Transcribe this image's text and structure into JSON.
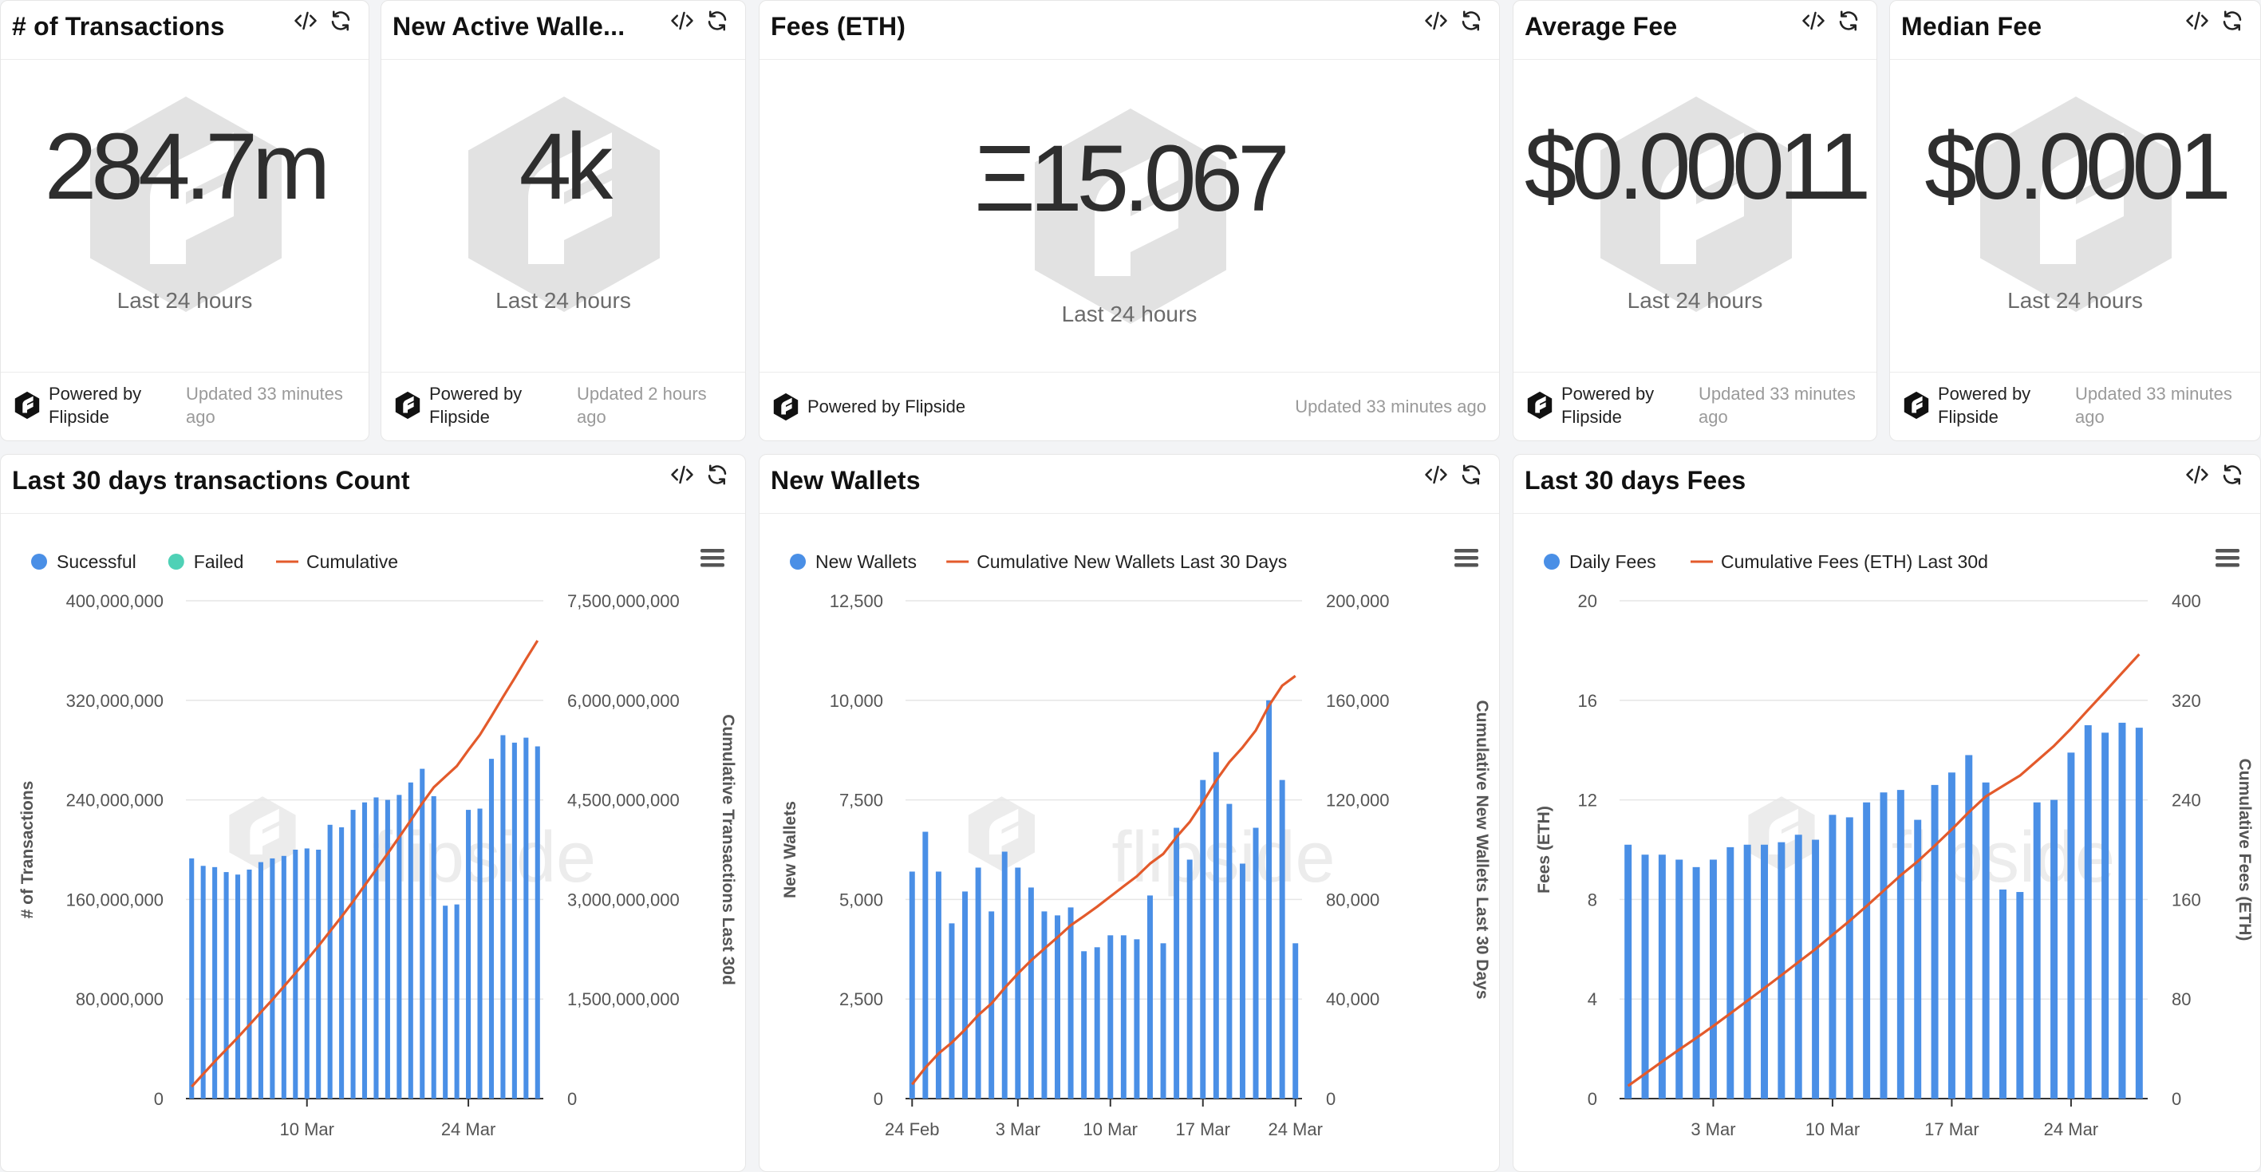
{
  "stat_cards": [
    {
      "title": "# of Transactions",
      "value": "284.7m",
      "subtitle": "Last 24 hours",
      "powered_1": "Powered by",
      "powered_2": "Flipside",
      "updated_1": "Updated 33 minutes",
      "updated_2": "ago"
    },
    {
      "title": "New Active Walle...",
      "value": "4k",
      "subtitle": "Last 24 hours",
      "powered_1": "Powered by",
      "powered_2": "Flipside",
      "updated_1": "Updated 2 hours",
      "updated_2": "ago"
    },
    {
      "title": "Fees (ETH)",
      "value": "Ξ15.067",
      "subtitle": "Last 24 hours",
      "powered_1": "Powered by Flipside",
      "updated_1": "Updated 33 minutes ago"
    },
    {
      "title": "Average Fee",
      "value": "$0.00011",
      "subtitle": "Last 24 hours",
      "powered_1": "Powered by",
      "powered_2": "Flipside",
      "updated_1": "Updated 33 minutes",
      "updated_2": "ago"
    },
    {
      "title": "Median Fee",
      "value": "$0.0001",
      "subtitle": "Last 24 hours",
      "powered_1": "Powered by",
      "powered_2": "Flipside",
      "updated_1": "Updated 33 minutes",
      "updated_2": "ago"
    }
  ],
  "colors": {
    "bar": "#4a8fe6",
    "line": "#e35a2b",
    "failed": "#4fd1b6",
    "text": "#555555",
    "grid": "#e6e6e6",
    "axis": "#333333"
  },
  "icons": {
    "embed": "code-embed-icon",
    "refresh": "refresh-icon",
    "menu": "hamburger-menu-icon",
    "brand": "flipside-logo-icon"
  },
  "watermark": "flipside",
  "chart_data": [
    {
      "type": "bar",
      "title": "Last 30 days transactions Count",
      "legend": [
        {
          "name": "Sucessful",
          "kind": "bar",
          "color": "#4a8fe6"
        },
        {
          "name": "Failed",
          "kind": "bar",
          "color": "#4fd1b6"
        },
        {
          "name": "Cumulative",
          "kind": "line",
          "color": "#e35a2b"
        }
      ],
      "ylabel": "# of Transactions",
      "y2label": "Cumulative Transactions Last 30d",
      "ylim": [
        0,
        400000000
      ],
      "y2lim": [
        0,
        7500000000
      ],
      "yticks": [
        "0",
        "80,000,000",
        "160,000,000",
        "240,000,000",
        "320,000,000",
        "400,000,000"
      ],
      "y2ticks": [
        "0",
        "1,500,000,000",
        "3,000,000,000",
        "4,500,000,000",
        "6,000,000,000",
        "7,500,000,000"
      ],
      "x_start_date": "2024-02-29",
      "xticks": [
        {
          "label": "10 Mar",
          "index": 10
        },
        {
          "label": "24 Mar",
          "index": 24
        }
      ],
      "values": [
        193000000,
        187000000,
        186000000,
        182000000,
        180000000,
        184000000,
        190000000,
        193000000,
        195000000,
        200000000,
        201000000,
        200000000,
        220000000,
        218000000,
        232000000,
        238000000,
        242000000,
        240000000,
        244000000,
        254000000,
        265000000,
        243000000,
        155000000,
        156000000,
        232000000,
        233000000,
        273000000,
        292000000,
        286000000,
        290000000,
        283000000
      ],
      "cumulative": [
        180000000,
        370000000,
        560000000,
        740000000,
        920000000,
        1110000000,
        1300000000,
        1490000000,
        1690000000,
        1890000000,
        2090000000,
        2300000000,
        2520000000,
        2740000000,
        2970000000,
        3210000000,
        3450000000,
        3690000000,
        3940000000,
        4190000000,
        4450000000,
        4690000000,
        4850000000,
        5010000000,
        5250000000,
        5480000000,
        5760000000,
        6050000000,
        6330000000,
        6620000000,
        6900000000
      ]
    },
    {
      "type": "bar",
      "title": "New Wallets",
      "legend": [
        {
          "name": "New Wallets",
          "kind": "bar",
          "color": "#4a8fe6"
        },
        {
          "name": "Cumulative New Wallets Last 30 Days",
          "kind": "line",
          "color": "#e35a2b"
        }
      ],
      "ylabel": "New Wallets",
      "y2label": "Cumulative New Wallets Last 30 Days",
      "ylim": [
        0,
        12500
      ],
      "y2lim": [
        0,
        200000
      ],
      "yticks": [
        "0",
        "2,500",
        "5,000",
        "7,500",
        "10,000",
        "12,500"
      ],
      "y2ticks": [
        "0",
        "40,000",
        "80,000",
        "120,000",
        "160,000",
        "200,000"
      ],
      "x_start_date": "2024-02-24",
      "xticks": [
        {
          "label": "24 Feb",
          "index": 0
        },
        {
          "label": "3 Mar",
          "index": 8
        },
        {
          "label": "10 Mar",
          "index": 15
        },
        {
          "label": "17 Mar",
          "index": 22
        },
        {
          "label": "24 Mar",
          "index": 29
        }
      ],
      "values": [
        5700,
        6700,
        5700,
        4400,
        5200,
        5800,
        4700,
        6200,
        5800,
        5300,
        4700,
        4600,
        4800,
        3700,
        3800,
        4100,
        4100,
        4000,
        5100,
        3900,
        6800,
        6000,
        8000,
        8700,
        7400,
        5900,
        6800,
        10000,
        8000,
        3900
      ],
      "cumulative": [
        5700,
        12400,
        18100,
        22500,
        27700,
        33500,
        38200,
        44400,
        50200,
        55500,
        60200,
        64800,
        69600,
        73300,
        77100,
        81200,
        85300,
        89300,
        94400,
        98300,
        105100,
        111100,
        119100,
        127800,
        135200,
        141100,
        147900,
        157900,
        165900,
        169800
      ]
    },
    {
      "type": "bar",
      "title": "Last 30 days Fees",
      "legend": [
        {
          "name": "Daily Fees",
          "kind": "bar",
          "color": "#4a8fe6"
        },
        {
          "name": "Cumulative Fees (ETH) Last 30d",
          "kind": "line",
          "color": "#e35a2b"
        }
      ],
      "ylabel": "Fees (ETH)",
      "y2label": "Cumulative Fees (ETH)",
      "ylim": [
        0,
        20
      ],
      "y2lim": [
        0,
        400
      ],
      "yticks": [
        "0",
        "4",
        "8",
        "12",
        "16",
        "20"
      ],
      "y2ticks": [
        "0",
        "80",
        "160",
        "240",
        "320",
        "400"
      ],
      "x_start_date": "2024-02-27",
      "xticks": [
        {
          "label": "3 Mar",
          "index": 5
        },
        {
          "label": "10 Mar",
          "index": 12
        },
        {
          "label": "17 Mar",
          "index": 19
        },
        {
          "label": "24 Mar",
          "index": 26
        }
      ],
      "values": [
        10.2,
        9.8,
        9.8,
        9.6,
        9.3,
        9.6,
        10.1,
        10.2,
        10.2,
        10.3,
        10.6,
        10.4,
        11.4,
        11.3,
        11.9,
        12.3,
        12.4,
        11.2,
        12.6,
        13.1,
        13.8,
        12.7,
        8.4,
        8.3,
        11.9,
        12.0,
        13.9,
        15.0,
        14.7,
        15.1,
        14.9
      ],
      "cumulative": [
        10.2,
        20,
        29.8,
        39.4,
        48.7,
        58.3,
        68.4,
        78.6,
        88.8,
        99.1,
        109.7,
        120.1,
        131.5,
        142.8,
        154.7,
        167,
        179.4,
        190.6,
        203.2,
        216.3,
        230.1,
        242.8,
        251.2,
        259.5,
        271.4,
        283.4,
        297.3,
        312.3,
        327,
        342.1,
        357
      ]
    }
  ]
}
